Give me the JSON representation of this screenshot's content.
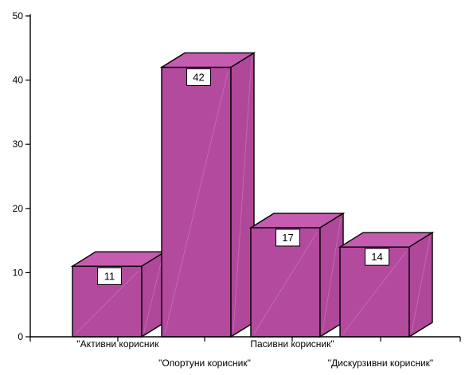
{
  "chart_data": {
    "type": "bar",
    "categories": [
      "\"Активни корисник",
      "\"Опортуни корисник\"",
      "Пасивни корисник\"",
      "\"Дискурзивни корисник\""
    ],
    "values": [
      11,
      42,
      17,
      14
    ],
    "value_labels": [
      "11",
      "42",
      "17",
      "14"
    ],
    "yticks": [
      0,
      10,
      20,
      30,
      40,
      50
    ],
    "ylim": [
      0,
      50
    ],
    "title": "",
    "xlabel": "",
    "ylabel": "",
    "grid": false,
    "legend": "none",
    "colors": {
      "bar_front": "#b34a9e",
      "bar_top": "#c55cb0",
      "bar_side": "#b04899",
      "outline": "#000000"
    }
  }
}
